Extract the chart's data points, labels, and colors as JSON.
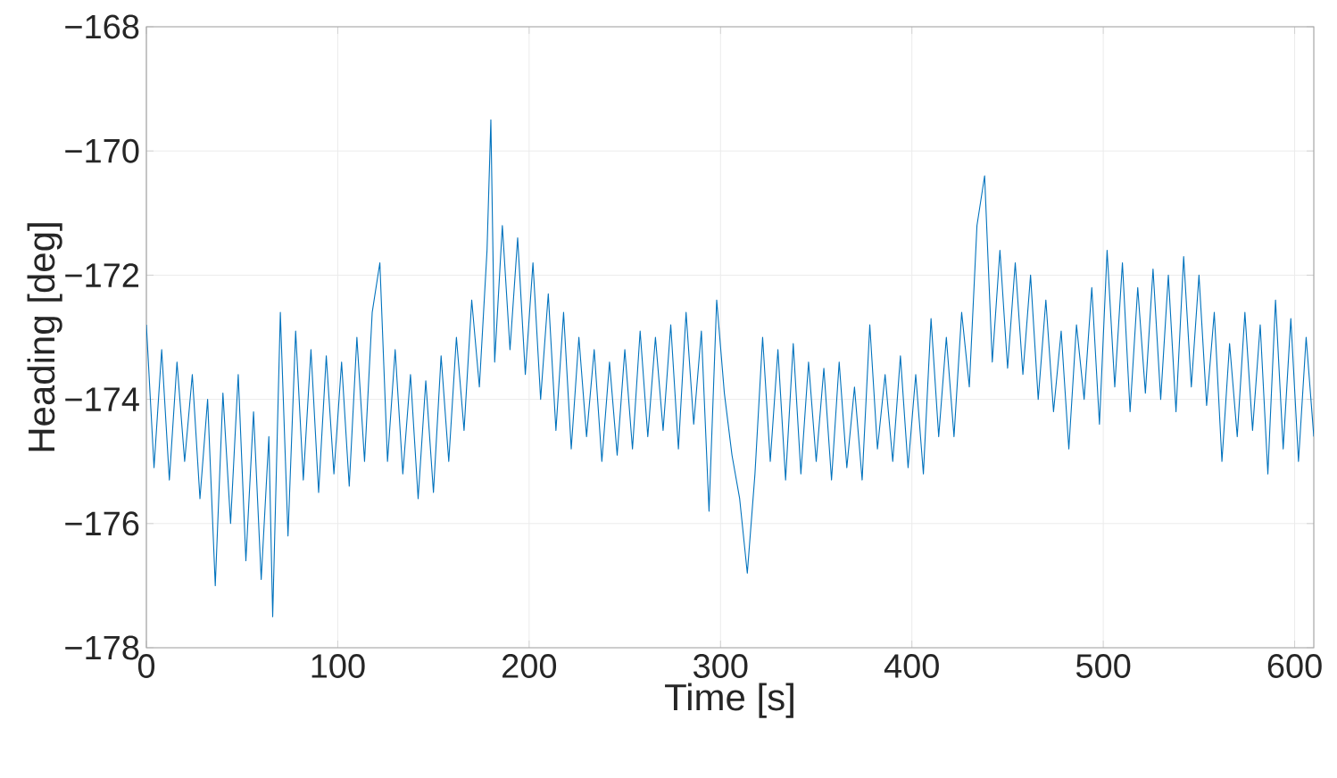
{
  "chart_data": {
    "type": "line",
    "xlabel": "Time [s]",
    "ylabel": "Heading [deg]",
    "xlim": [
      0,
      610
    ],
    "ylim": [
      -178,
      -168
    ],
    "xticks": [
      0,
      100,
      200,
      300,
      400,
      500,
      600
    ],
    "yticks": [
      {
        "value": -178,
        "label": "−178"
      },
      {
        "value": -176,
        "label": "−176"
      },
      {
        "value": -174,
        "label": "−174"
      },
      {
        "value": -172,
        "label": "−172"
      },
      {
        "value": -170,
        "label": "−170"
      },
      {
        "value": -168,
        "label": "−168"
      }
    ],
    "grid": true,
    "series": [
      {
        "color": "#0072bd",
        "x": [
          0,
          4,
          8,
          12,
          16,
          20,
          24,
          28,
          32,
          36,
          40,
          44,
          48,
          52,
          56,
          60,
          64,
          66,
          70,
          74,
          78,
          82,
          86,
          90,
          94,
          98,
          102,
          106,
          110,
          114,
          118,
          122,
          126,
          130,
          134,
          138,
          142,
          146,
          150,
          154,
          158,
          162,
          166,
          170,
          174,
          178,
          180,
          182,
          186,
          190,
          194,
          198,
          202,
          206,
          210,
          214,
          218,
          222,
          226,
          230,
          234,
          238,
          242,
          246,
          250,
          254,
          258,
          262,
          266,
          270,
          274,
          278,
          282,
          286,
          290,
          294,
          298,
          302,
          306,
          310,
          314,
          318,
          322,
          326,
          330,
          334,
          338,
          342,
          346,
          350,
          354,
          358,
          362,
          366,
          370,
          374,
          378,
          382,
          386,
          390,
          394,
          398,
          402,
          406,
          410,
          414,
          418,
          422,
          426,
          430,
          434,
          438,
          442,
          446,
          450,
          454,
          458,
          462,
          466,
          470,
          474,
          478,
          482,
          486,
          490,
          494,
          498,
          502,
          506,
          510,
          514,
          518,
          522,
          526,
          530,
          534,
          538,
          542,
          546,
          550,
          554,
          558,
          562,
          566,
          570,
          574,
          578,
          582,
          586,
          590,
          594,
          598,
          602,
          606,
          610
        ],
        "values": [
          -172.8,
          -175.1,
          -173.2,
          -175.3,
          -173.4,
          -175.0,
          -173.6,
          -175.6,
          -174.0,
          -177.0,
          -173.9,
          -176.0,
          -173.6,
          -176.6,
          -174.2,
          -176.9,
          -174.6,
          -177.5,
          -172.6,
          -176.2,
          -172.9,
          -175.3,
          -173.2,
          -175.5,
          -173.3,
          -175.2,
          -173.4,
          -175.4,
          -173.0,
          -175.0,
          -172.6,
          -171.8,
          -175.0,
          -173.2,
          -175.2,
          -173.6,
          -175.6,
          -173.7,
          -175.5,
          -173.3,
          -175.0,
          -173.0,
          -174.5,
          -172.4,
          -173.8,
          -171.6,
          -169.5,
          -173.4,
          -171.2,
          -173.2,
          -171.4,
          -173.6,
          -171.8,
          -174.0,
          -172.3,
          -174.5,
          -172.6,
          -174.8,
          -173.0,
          -174.6,
          -173.2,
          -175.0,
          -173.4,
          -174.9,
          -173.2,
          -174.8,
          -172.9,
          -174.6,
          -173.0,
          -174.5,
          -172.8,
          -174.8,
          -172.6,
          -174.4,
          -172.9,
          -175.8,
          -172.4,
          -173.9,
          -174.9,
          -175.6,
          -176.8,
          -175.2,
          -173.0,
          -175.0,
          -173.2,
          -175.3,
          -173.1,
          -175.2,
          -173.4,
          -175.0,
          -173.5,
          -175.3,
          -173.4,
          -175.1,
          -173.8,
          -175.3,
          -172.8,
          -174.8,
          -173.6,
          -175.0,
          -173.3,
          -175.1,
          -173.6,
          -175.2,
          -172.7,
          -174.6,
          -173.0,
          -174.6,
          -172.6,
          -173.8,
          -171.2,
          -170.4,
          -173.4,
          -171.6,
          -173.5,
          -171.8,
          -173.6,
          -172.0,
          -174.0,
          -172.4,
          -174.2,
          -172.9,
          -174.8,
          -172.8,
          -174.0,
          -172.2,
          -174.4,
          -171.6,
          -173.8,
          -171.8,
          -174.2,
          -172.2,
          -173.9,
          -171.9,
          -174.0,
          -172.0,
          -174.2,
          -171.7,
          -173.8,
          -172.0,
          -174.1,
          -172.6,
          -175.0,
          -173.1,
          -174.6,
          -172.6,
          -174.5,
          -172.8,
          -175.2,
          -172.4,
          -174.8,
          -172.7,
          -175.0,
          -173.0,
          -174.6
        ]
      }
    ]
  }
}
